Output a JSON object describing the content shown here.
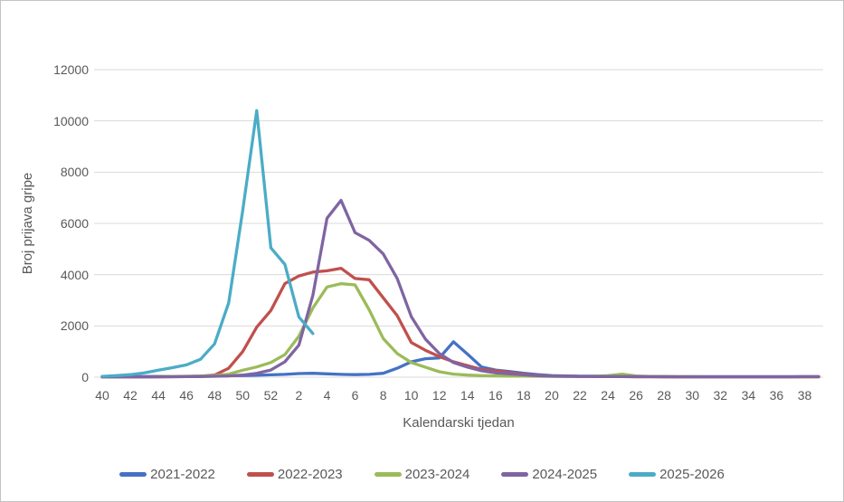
{
  "chart_data": {
    "type": "line",
    "title": "",
    "xlabel": "Kalendarski tjedan",
    "ylabel": "Broj prijava gripe",
    "ylim": [
      0,
      12000
    ],
    "y_ticks": [
      0,
      2000,
      4000,
      6000,
      8000,
      10000,
      12000
    ],
    "grid": "horizontal",
    "gridline_color": "#d9d9d9",
    "label_color": "#595959",
    "legend_position": "bottom",
    "weeks": [
      40,
      41,
      42,
      43,
      44,
      45,
      46,
      47,
      48,
      49,
      50,
      51,
      52,
      1,
      2,
      3,
      4,
      5,
      6,
      7,
      8,
      9,
      10,
      11,
      12,
      13,
      14,
      15,
      16,
      17,
      18,
      19,
      20,
      21,
      22,
      23,
      24,
      25,
      26,
      27,
      28,
      29,
      30,
      31,
      32,
      33,
      34,
      35,
      36,
      37,
      38,
      39
    ],
    "x_tick_labels": [
      "40",
      "42",
      "44",
      "46",
      "48",
      "50",
      "52",
      "2",
      "4",
      "6",
      "8",
      "10",
      "12",
      "14",
      "16",
      "18",
      "20",
      "22",
      "24",
      "26",
      "28",
      "30",
      "32",
      "34",
      "36",
      "38"
    ],
    "series": [
      {
        "name": "2021-2022",
        "color": "#4472C4",
        "values": [
          15,
          15,
          20,
          25,
          30,
          30,
          35,
          40,
          45,
          55,
          65,
          75,
          90,
          110,
          140,
          150,
          130,
          110,
          100,
          110,
          150,
          350,
          600,
          720,
          750,
          1380,
          900,
          400,
          280,
          220,
          150,
          100,
          60,
          50,
          40,
          40,
          35,
          30,
          30,
          25,
          25,
          20,
          20,
          20,
          20,
          20,
          20,
          20,
          20,
          20,
          20,
          20
        ]
      },
      {
        "name": "2022-2023",
        "color": "#C0504D",
        "values": [
          10,
          10,
          10,
          15,
          15,
          20,
          25,
          40,
          80,
          350,
          1000,
          1950,
          2600,
          3650,
          3950,
          4100,
          4150,
          4250,
          3850,
          3800,
          3100,
          2400,
          1350,
          1050,
          800,
          600,
          450,
          300,
          250,
          180,
          120,
          70,
          40,
          30,
          25,
          20,
          20,
          20,
          15,
          15,
          10,
          10,
          10,
          10,
          10,
          10,
          10,
          10,
          10,
          10,
          10,
          10
        ]
      },
      {
        "name": "2023-2024",
        "color": "#9BBB59",
        "values": [
          10,
          10,
          15,
          15,
          20,
          25,
          30,
          40,
          60,
          120,
          270,
          400,
          570,
          880,
          1600,
          2700,
          3520,
          3650,
          3600,
          2630,
          1510,
          920,
          570,
          390,
          210,
          120,
          80,
          60,
          50,
          40,
          40,
          35,
          30,
          30,
          30,
          35,
          60,
          120,
          50,
          30,
          25,
          20,
          20,
          15,
          15,
          15,
          15,
          15,
          15,
          15,
          15,
          15
        ]
      },
      {
        "name": "2024-2025",
        "color": "#8064A2",
        "values": [
          10,
          10,
          10,
          10,
          15,
          15,
          20,
          25,
          35,
          50,
          80,
          150,
          280,
          600,
          1250,
          3200,
          6200,
          6900,
          5640,
          5340,
          4810,
          3850,
          2360,
          1490,
          920,
          570,
          390,
          250,
          170,
          130,
          90,
          60,
          40,
          35,
          30,
          30,
          25,
          25,
          20,
          20,
          20,
          15,
          15,
          15,
          15,
          15,
          15,
          15,
          15,
          15,
          20,
          20
        ]
      },
      {
        "name": "2025-2026",
        "color": "#4BACC6",
        "values": [
          30,
          60,
          100,
          170,
          270,
          370,
          480,
          700,
          1300,
          2900,
          6500,
          10400,
          5050,
          4400,
          2350,
          1700,
          null,
          null,
          null,
          null,
          null,
          null,
          null,
          null,
          null,
          null,
          null,
          null,
          null,
          null,
          null,
          null,
          null,
          null,
          null,
          null,
          null,
          null,
          null,
          null,
          null,
          null,
          null,
          null,
          null,
          null,
          null,
          null,
          null,
          null,
          null,
          null
        ]
      }
    ]
  }
}
